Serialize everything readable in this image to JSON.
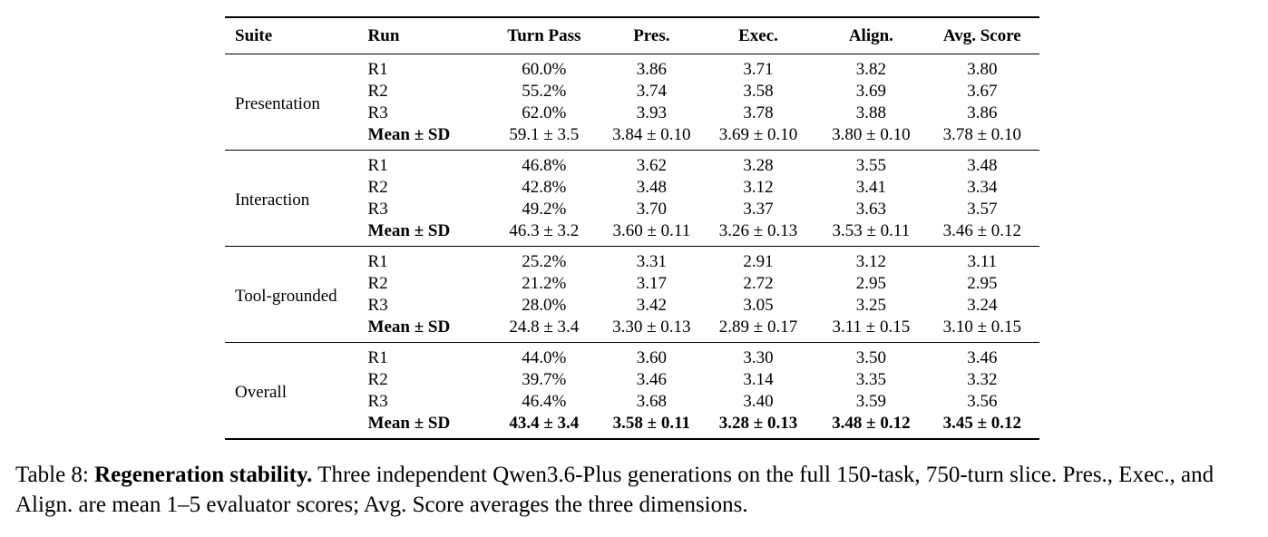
{
  "table": {
    "headers": [
      "Suite",
      "Run",
      "Turn Pass",
      "Pres.",
      "Exec.",
      "Align.",
      "Avg. Score"
    ],
    "groups": [
      {
        "suite": "Presentation",
        "rows": [
          {
            "run": "R1",
            "values": [
              "60.0%",
              "3.86",
              "3.71",
              "3.82",
              "3.80"
            ]
          },
          {
            "run": "R2",
            "values": [
              "55.2%",
              "3.74",
              "3.58",
              "3.69",
              "3.67"
            ]
          },
          {
            "run": "R3",
            "values": [
              "62.0%",
              "3.93",
              "3.78",
              "3.88",
              "3.86"
            ]
          },
          {
            "run": "Mean ± SD",
            "values": [
              "59.1 ± 3.5",
              "3.84 ± 0.10",
              "3.69 ± 0.10",
              "3.80 ± 0.10",
              "3.78 ± 0.10"
            ]
          }
        ]
      },
      {
        "suite": "Interaction",
        "rows": [
          {
            "run": "R1",
            "values": [
              "46.8%",
              "3.62",
              "3.28",
              "3.55",
              "3.48"
            ]
          },
          {
            "run": "R2",
            "values": [
              "42.8%",
              "3.48",
              "3.12",
              "3.41",
              "3.34"
            ]
          },
          {
            "run": "R3",
            "values": [
              "49.2%",
              "3.70",
              "3.37",
              "3.63",
              "3.57"
            ]
          },
          {
            "run": "Mean ± SD",
            "values": [
              "46.3 ± 3.2",
              "3.60 ± 0.11",
              "3.26 ± 0.13",
              "3.53 ± 0.11",
              "3.46 ± 0.12"
            ]
          }
        ]
      },
      {
        "suite": "Tool-grounded",
        "rows": [
          {
            "run": "R1",
            "values": [
              "25.2%",
              "3.31",
              "2.91",
              "3.12",
              "3.11"
            ]
          },
          {
            "run": "R2",
            "values": [
              "21.2%",
              "3.17",
              "2.72",
              "2.95",
              "2.95"
            ]
          },
          {
            "run": "R3",
            "values": [
              "28.0%",
              "3.42",
              "3.05",
              "3.25",
              "3.24"
            ]
          },
          {
            "run": "Mean ± SD",
            "values": [
              "24.8 ± 3.4",
              "3.30 ± 0.13",
              "2.89 ± 0.17",
              "3.11 ± 0.15",
              "3.10 ± 0.15"
            ]
          }
        ]
      },
      {
        "suite": "Overall",
        "rows": [
          {
            "run": "R1",
            "values": [
              "44.0%",
              "3.60",
              "3.30",
              "3.50",
              "3.46"
            ]
          },
          {
            "run": "R2",
            "values": [
              "39.7%",
              "3.46",
              "3.14",
              "3.35",
              "3.32"
            ]
          },
          {
            "run": "R3",
            "values": [
              "46.4%",
              "3.68",
              "3.40",
              "3.59",
              "3.56"
            ]
          },
          {
            "run": "Mean ± SD",
            "values": [
              "43.4 ± 3.4",
              "3.58 ± 0.11",
              "3.28 ± 0.13",
              "3.48 ± 0.12",
              "3.45 ± 0.12"
            ]
          }
        ]
      }
    ]
  },
  "caption": {
    "label": "Table 8: ",
    "bold_title": "Regeneration stability.",
    "text": " Three independent Qwen3.6-Plus generations on the full 150-task, 750-turn slice. Pres., Exec., and Align. are mean 1–5 evaluator scores; Avg. Score averages the three dimensions."
  }
}
